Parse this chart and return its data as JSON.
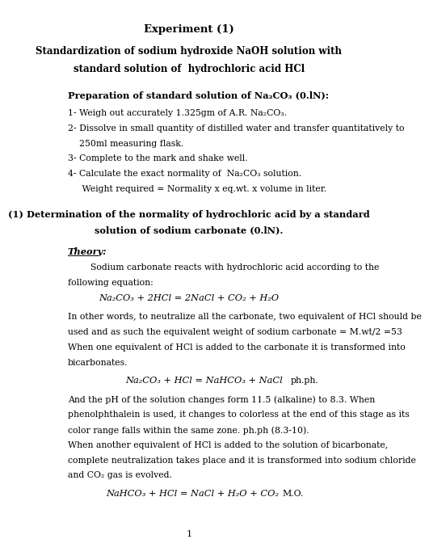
{
  "bg_color": "#ffffff",
  "title1": "Experiment (1)",
  "title2": "Standardization of sodium hydroxide NaOH solution with\nstandard solution of  hydrochloric acid HCl",
  "section1_heading": "Preparation of standard solution of Na₂CO₃ (0.lN):",
  "items": [
    "1- Weigh out accurately 1.325gm of A.R. Na₂CO₃.",
    "2- Dissolve in small quantity of distilled water and transfer quantitatively to\n    250ml measuring flask.",
    "3- Complete to the mark and shake well.",
    "4- Calculate the exact normality of  Na₂CO₃ solution.",
    "     Weight required = Normality x eq.wt. x volume in liter."
  ],
  "section2_heading": "(1) Determination of the normality of hydrochloric acid by a standard\nsolution of sodium carbonate (0.lN).",
  "theory_label": "Theory:",
  "theory_intro": "        Sodium carbonate reacts with hydrochloric acid according to the\nfollowing equation:",
  "eq1": "Na₂CO₃ + 2HCl = 2NaCl + CO₂ + H₂O",
  "paragraph1": "In other words, to neutralize all the carbonate, two equivalent of HCl should be\nused and as such the equivalent weight of sodium carbonate = M.wt/2 =53\nWhen one equivalent of HCl is added to the carbonate it is transformed into\nbicarbonates.",
  "eq2": "Na₂CO₃ + HCl = NaHCO₃ + NaCl",
  "eq2_right": "ph.ph.",
  "paragraph2": "And the pH of the solution changes form 11.5 (alkaline) to 8.3. When\nphenolphthalein is used, it changes to colorless at the end of this stage as its\ncolor range falls within the same zone. ph.ph (8.3-10).",
  "paragraph3": "When another equivalent of HCl is added to the solution of bicarbonate,\ncomplete neutralization takes place and it is transformed into sodium chloride\nand CO₂ gas is evolved.",
  "eq3": "NaHCO₃ + HCl = NaCl + H₂O + CO₂",
  "eq3_right": "M.O.",
  "page_num": "1"
}
